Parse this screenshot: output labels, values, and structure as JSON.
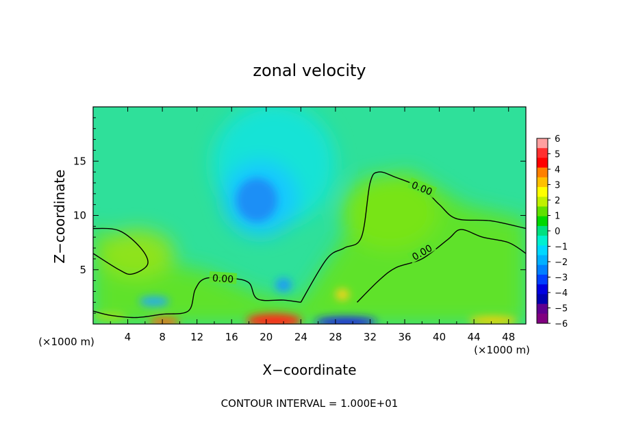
{
  "chart_data": {
    "type": "heatmap",
    "title": "zonal velocity",
    "xlabel": "X−coordinate",
    "ylabel": "Z−coordinate",
    "x_unit_left": "(×1000 m)",
    "x_unit_right": "(×1000 m)",
    "footer": "CONTOUR INTERVAL = 1.000E+01",
    "xlim": [
      0,
      50
    ],
    "ylim": [
      0,
      20
    ],
    "x_ticks": [
      "4",
      "8",
      "12",
      "16",
      "20",
      "24",
      "28",
      "32",
      "36",
      "40",
      "44",
      "48"
    ],
    "y_ticks": [
      "5",
      "10",
      "15"
    ],
    "colorbar": {
      "min": -6,
      "max": 6,
      "labels": [
        "6",
        "5",
        "4",
        "3",
        "2",
        "1",
        "0",
        "−1",
        "−2",
        "−3",
        "−4",
        "−5",
        "−6"
      ],
      "colors": [
        "#ffa0a0",
        "#ff3030",
        "#ff0000",
        "#ff8000",
        "#ffc000",
        "#ffff00",
        "#c0f000",
        "#60e000",
        "#00d800",
        "#00e080",
        "#00f0d0",
        "#00d8ff",
        "#00b0ff",
        "#0080ff",
        "#0040ff",
        "#0000e0",
        "#0000b0",
        "#600090",
        "#800080"
      ]
    },
    "contour_label": "0.00",
    "contours": [
      {
        "label": "0.00",
        "points": [
          [
            24,
            2
          ],
          [
            27,
            6
          ],
          [
            29,
            7
          ],
          [
            31,
            8
          ],
          [
            32,
            13
          ],
          [
            33,
            14
          ],
          [
            35,
            13.5
          ],
          [
            38,
            12.5
          ],
          [
            40,
            11
          ],
          [
            42,
            9.7
          ],
          [
            46,
            9.5
          ],
          [
            50,
            8.8
          ]
        ]
      },
      {
        "label": "0.00",
        "points": [
          [
            30.5,
            2
          ],
          [
            33,
            4
          ],
          [
            35,
            5.2
          ],
          [
            38,
            6
          ],
          [
            41,
            7.8
          ],
          [
            42.5,
            8.7
          ],
          [
            45,
            8
          ],
          [
            48,
            7.5
          ],
          [
            50,
            6.5
          ]
        ]
      },
      {
        "label": "0.00",
        "points": [
          [
            0,
            8.8
          ],
          [
            3,
            8.6
          ],
          [
            5.5,
            7
          ],
          [
            6.3,
            5.5
          ],
          [
            4.5,
            4.6
          ],
          [
            3,
            5
          ],
          [
            0,
            6.5
          ]
        ]
      },
      {
        "label": "0.00",
        "points": [
          [
            0,
            1.2
          ],
          [
            2,
            0.8
          ],
          [
            5,
            0.6
          ],
          [
            8,
            0.9
          ],
          [
            11,
            1.2
          ],
          [
            11.8,
            3.2
          ],
          [
            13,
            4.2
          ],
          [
            16,
            4.2
          ],
          [
            18,
            3.8
          ],
          [
            19,
            2.3
          ],
          [
            22,
            2.2
          ],
          [
            24,
            2
          ]
        ]
      }
    ],
    "field_features": [
      {
        "x": 19,
        "z": 11,
        "u": -3.0
      },
      {
        "x": 22,
        "z": 12,
        "u": -2.2
      },
      {
        "x": 22,
        "z": 3.5,
        "u": -3.0
      },
      {
        "x": 9,
        "z": 2,
        "u": -2.0
      },
      {
        "x": 35,
        "z": 10,
        "u": 1.0
      },
      {
        "x": 29,
        "z": 2.8,
        "u": 2.0
      },
      {
        "x": 21,
        "z": 0.3,
        "u": 5.0
      },
      {
        "x": 8.5,
        "z": 0.2,
        "u": 4.0
      },
      {
        "x": 30,
        "z": 0.3,
        "u": -5.0
      },
      {
        "x": 47,
        "z": 0.4,
        "u": 3.0
      },
      {
        "x": 3,
        "z": 3,
        "u": 0.5
      }
    ]
  }
}
